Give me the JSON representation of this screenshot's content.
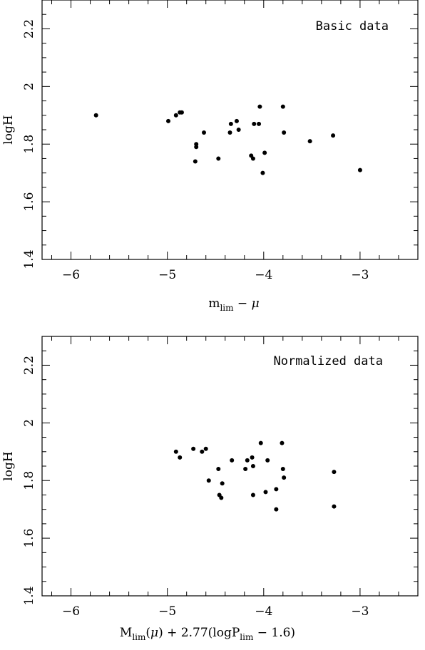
{
  "chart_data": [
    {
      "type": "scatter",
      "annotation": "Basic data",
      "xlabel": "m_lim − μ",
      "ylabel": "logH",
      "xlim": [
        -6.3,
        -2.4
      ],
      "ylim": [
        1.4,
        2.3
      ],
      "xticks": [
        -6,
        -5,
        -4,
        -3
      ],
      "yticks": [
        1.4,
        1.6,
        1.8,
        2,
        2.2
      ],
      "xtick_labels": [
        "−6",
        "−5",
        "−4",
        "−3"
      ],
      "ytick_labels": [
        "1.4",
        "1.6",
        "1.8",
        "2",
        "2.2"
      ],
      "grid": false,
      "points": [
        {
          "x": -5.74,
          "y": 1.9
        },
        {
          "x": -4.99,
          "y": 1.88
        },
        {
          "x": -4.91,
          "y": 1.9
        },
        {
          "x": -4.87,
          "y": 1.91
        },
        {
          "x": -4.85,
          "y": 1.91
        },
        {
          "x": -4.7,
          "y": 1.8
        },
        {
          "x": -4.7,
          "y": 1.79
        },
        {
          "x": -4.71,
          "y": 1.74
        },
        {
          "x": -4.62,
          "y": 1.84
        },
        {
          "x": -4.47,
          "y": 1.75
        },
        {
          "x": -4.34,
          "y": 1.87
        },
        {
          "x": -4.35,
          "y": 1.84
        },
        {
          "x": -4.28,
          "y": 1.88
        },
        {
          "x": -4.26,
          "y": 1.85
        },
        {
          "x": -4.13,
          "y": 1.76
        },
        {
          "x": -4.11,
          "y": 1.75
        },
        {
          "x": -4.1,
          "y": 1.87
        },
        {
          "x": -4.05,
          "y": 1.87
        },
        {
          "x": -4.04,
          "y": 1.93
        },
        {
          "x": -4.01,
          "y": 1.7
        },
        {
          "x": -3.99,
          "y": 1.77
        },
        {
          "x": -3.8,
          "y": 1.93
        },
        {
          "x": -3.79,
          "y": 1.84
        },
        {
          "x": -3.52,
          "y": 1.81
        },
        {
          "x": -3.28,
          "y": 1.83
        },
        {
          "x": -3.0,
          "y": 1.71
        }
      ]
    },
    {
      "type": "scatter",
      "annotation": "Normalized data",
      "xlabel": "M_lim(μ) + 2.77(logP_lim − 1.6)",
      "ylabel": "logH",
      "xlim": [
        -6.3,
        -2.4
      ],
      "ylim": [
        1.4,
        2.3
      ],
      "xticks": [
        -6,
        -5,
        -4,
        -3
      ],
      "yticks": [
        1.4,
        1.6,
        1.8,
        2,
        2.2
      ],
      "xtick_labels": [
        "−6",
        "−5",
        "−4",
        "−3"
      ],
      "ytick_labels": [
        "1.4",
        "1.6",
        "1.8",
        "2",
        "2.2"
      ],
      "grid": false,
      "points": [
        {
          "x": -4.91,
          "y": 1.9
        },
        {
          "x": -4.87,
          "y": 1.88
        },
        {
          "x": -4.73,
          "y": 1.91
        },
        {
          "x": -4.64,
          "y": 1.9
        },
        {
          "x": -4.6,
          "y": 1.91
        },
        {
          "x": -4.57,
          "y": 1.8
        },
        {
          "x": -4.47,
          "y": 1.84
        },
        {
          "x": -4.46,
          "y": 1.75
        },
        {
          "x": -4.44,
          "y": 1.74
        },
        {
          "x": -4.43,
          "y": 1.79
        },
        {
          "x": -4.33,
          "y": 1.87
        },
        {
          "x": -4.19,
          "y": 1.84
        },
        {
          "x": -4.17,
          "y": 1.87
        },
        {
          "x": -4.12,
          "y": 1.88
        },
        {
          "x": -4.11,
          "y": 1.85
        },
        {
          "x": -4.11,
          "y": 1.75
        },
        {
          "x": -4.03,
          "y": 1.93
        },
        {
          "x": -3.98,
          "y": 1.76
        },
        {
          "x": -3.96,
          "y": 1.87
        },
        {
          "x": -3.87,
          "y": 1.77
        },
        {
          "x": -3.87,
          "y": 1.7
        },
        {
          "x": -3.81,
          "y": 1.93
        },
        {
          "x": -3.8,
          "y": 1.84
        },
        {
          "x": -3.79,
          "y": 1.81
        },
        {
          "x": -3.27,
          "y": 1.83
        },
        {
          "x": -3.27,
          "y": 1.71
        }
      ]
    }
  ]
}
